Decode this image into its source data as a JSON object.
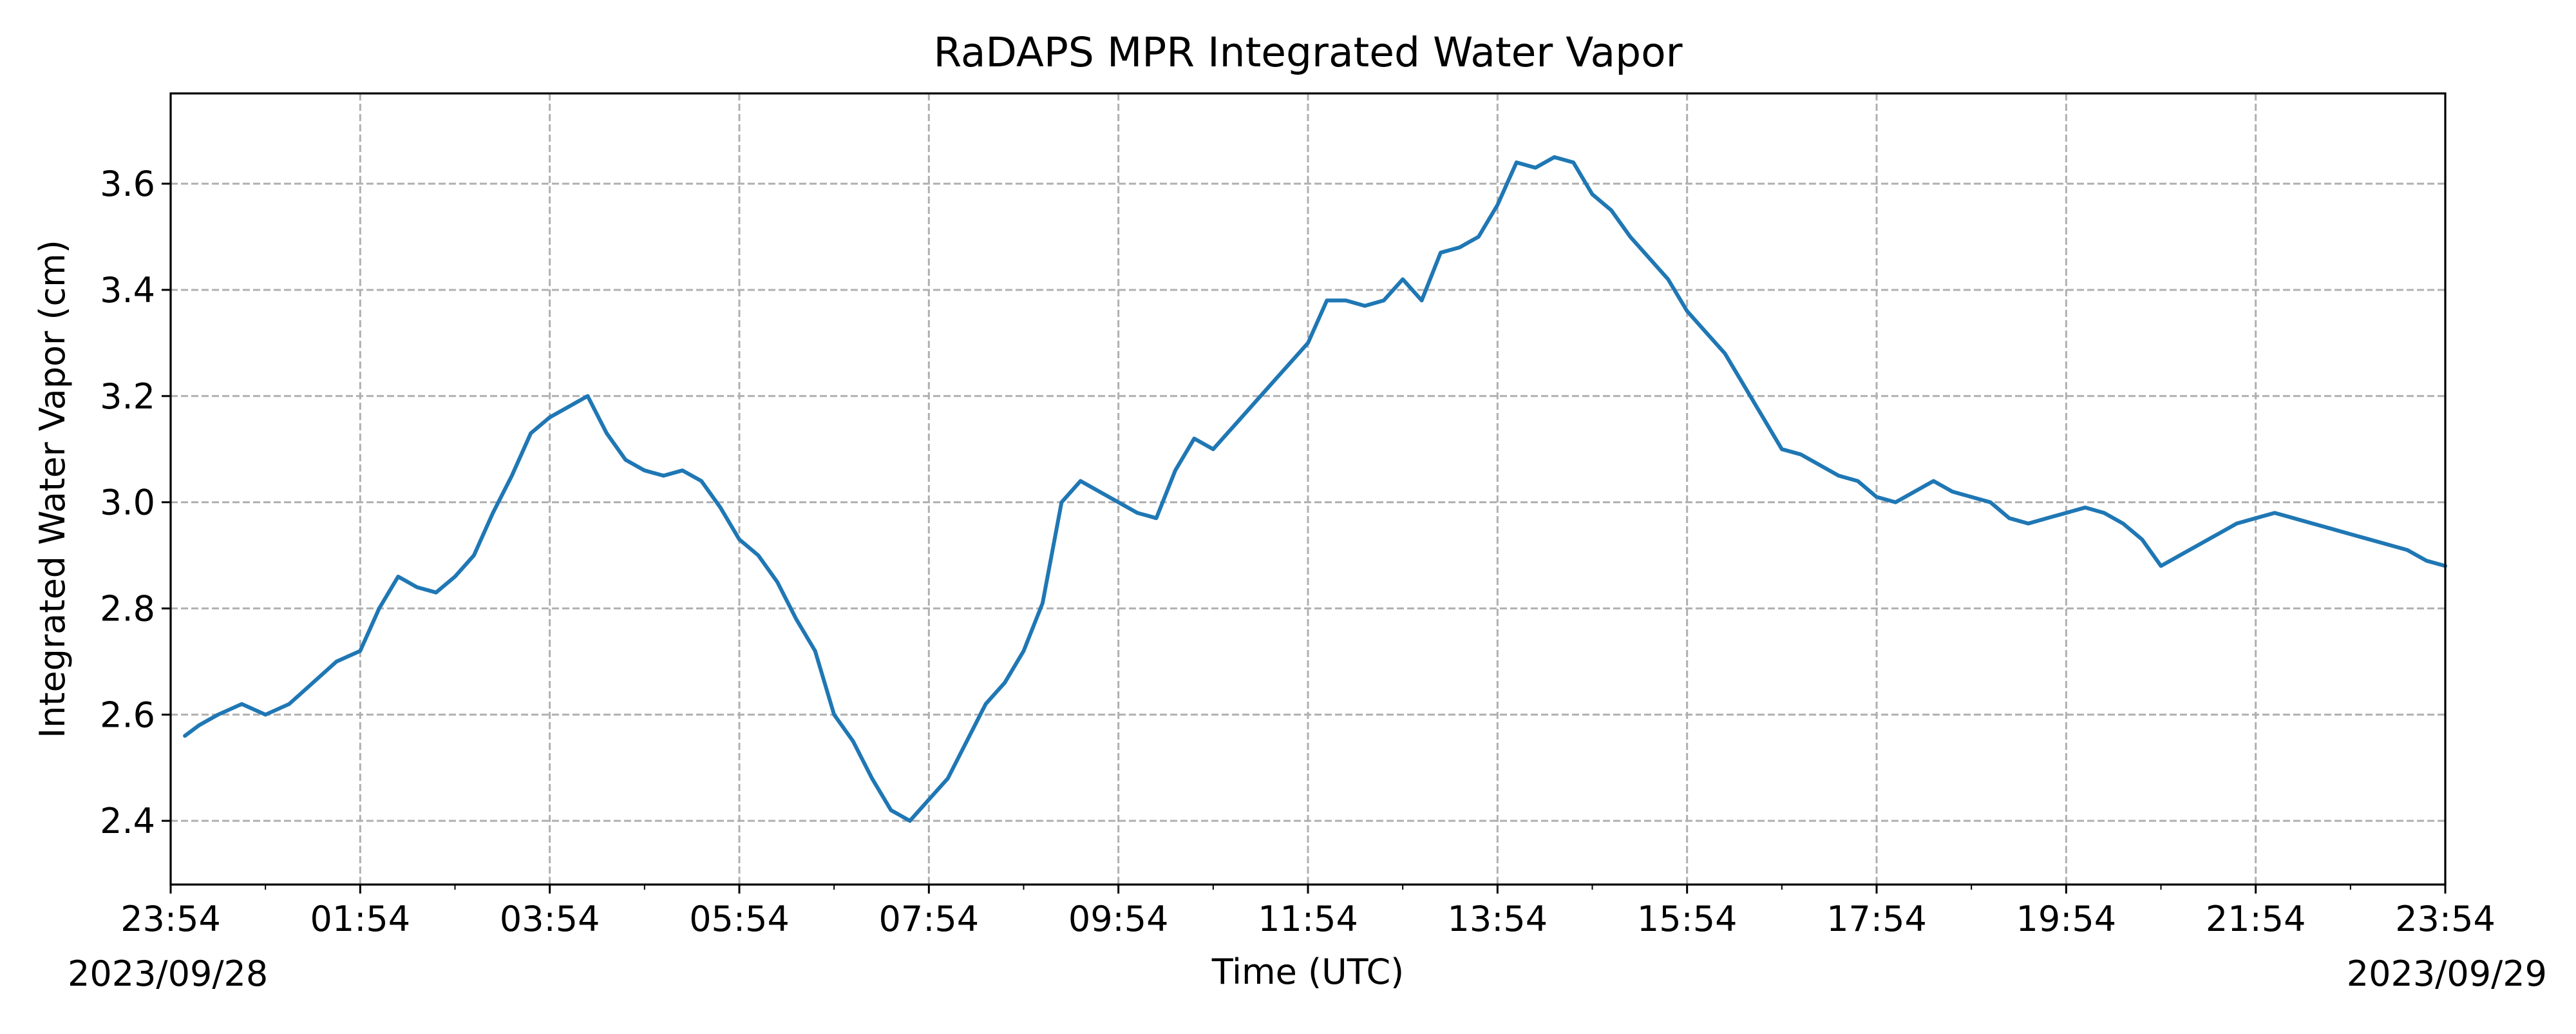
{
  "chart_data": {
    "type": "line",
    "title": "RaDAPS MPR Integrated Water Vapor",
    "xlabel": "Time (UTC)",
    "ylabel": "Integrated Water Vapor (cm)",
    "x_start_label": "2023/09/28",
    "x_end_label": "2023/09/29",
    "x_unit": "hours from 2023/09/28 23:54 UTC",
    "xlim": [
      0,
      24
    ],
    "ylim": [
      2.28,
      3.77
    ],
    "x_ticks": [
      0,
      2,
      4,
      6,
      8,
      10,
      12,
      14,
      16,
      18,
      20,
      22,
      24
    ],
    "x_tick_labels": [
      "23:54",
      "01:54",
      "03:54",
      "05:54",
      "07:54",
      "09:54",
      "11:54",
      "13:54",
      "15:54",
      "17:54",
      "19:54",
      "21:54",
      "23:54"
    ],
    "y_ticks": [
      2.4,
      2.6,
      2.8,
      3.0,
      3.2,
      3.4,
      3.6
    ],
    "y_tick_labels": [
      "2.4",
      "2.6",
      "2.8",
      "3.0",
      "3.2",
      "3.4",
      "3.6"
    ],
    "grid": true,
    "series": [
      {
        "name": "",
        "color": "#1f77b4",
        "x": [
          0.15,
          0.3,
          0.5,
          0.75,
          1.0,
          1.25,
          1.5,
          1.75,
          2.0,
          2.2,
          2.4,
          2.6,
          2.8,
          3.0,
          3.2,
          3.4,
          3.6,
          3.8,
          4.0,
          4.2,
          4.4,
          4.6,
          4.8,
          5.0,
          5.2,
          5.4,
          5.6,
          5.8,
          6.0,
          6.2,
          6.4,
          6.6,
          6.8,
          7.0,
          7.2,
          7.4,
          7.6,
          7.8,
          8.0,
          8.2,
          8.4,
          8.6,
          8.8,
          9.0,
          9.2,
          9.4,
          9.6,
          9.8,
          10.0,
          10.2,
          10.4,
          10.6,
          10.8,
          11.0,
          11.2,
          11.4,
          11.6,
          11.8,
          12.0,
          12.2,
          12.4,
          12.6,
          12.8,
          13.0,
          13.2,
          13.4,
          13.6,
          13.8,
          14.0,
          14.2,
          14.4,
          14.6,
          14.8,
          15.0,
          15.2,
          15.4,
          15.6,
          15.8,
          16.0,
          16.2,
          16.4,
          16.6,
          16.8,
          17.0,
          17.2,
          17.4,
          17.6,
          17.8,
          18.0,
          18.2,
          18.4,
          18.6,
          18.8,
          19.0,
          19.2,
          19.4,
          19.6,
          19.8,
          20.0,
          20.2,
          20.4,
          20.6,
          20.8,
          21.0,
          21.2,
          21.4,
          21.6,
          21.8,
          22.0,
          22.2,
          22.4,
          22.6,
          22.8,
          23.0,
          23.2,
          23.4,
          23.6,
          23.8,
          24.0
        ],
        "y": [
          2.56,
          2.58,
          2.6,
          2.62,
          2.6,
          2.62,
          2.66,
          2.7,
          2.72,
          2.8,
          2.86,
          2.84,
          2.83,
          2.86,
          2.9,
          2.98,
          3.05,
          3.13,
          3.16,
          3.18,
          3.2,
          3.13,
          3.08,
          3.06,
          3.05,
          3.06,
          3.04,
          2.99,
          2.93,
          2.9,
          2.85,
          2.78,
          2.72,
          2.6,
          2.55,
          2.48,
          2.42,
          2.4,
          2.44,
          2.48,
          2.55,
          2.62,
          2.66,
          2.72,
          2.81,
          3.0,
          3.04,
          3.02,
          3.0,
          2.98,
          2.97,
          3.06,
          3.12,
          3.1,
          3.14,
          3.18,
          3.22,
          3.26,
          3.3,
          3.38,
          3.38,
          3.37,
          3.38,
          3.42,
          3.38,
          3.47,
          3.48,
          3.5,
          3.56,
          3.64,
          3.63,
          3.65,
          3.64,
          3.58,
          3.55,
          3.5,
          3.46,
          3.42,
          3.36,
          3.32,
          3.28,
          3.22,
          3.16,
          3.1,
          3.09,
          3.07,
          3.05,
          3.04,
          3.01,
          3.0,
          3.02,
          3.04,
          3.02,
          3.01,
          3.0,
          2.97,
          2.96,
          2.97,
          2.98,
          2.99,
          2.98,
          2.96,
          2.93,
          2.88,
          2.9,
          2.92,
          2.94,
          2.96,
          2.97,
          2.98,
          2.97,
          2.96,
          2.95,
          2.94,
          2.93,
          2.92,
          2.91,
          2.89,
          2.88
        ]
      }
    ]
  }
}
